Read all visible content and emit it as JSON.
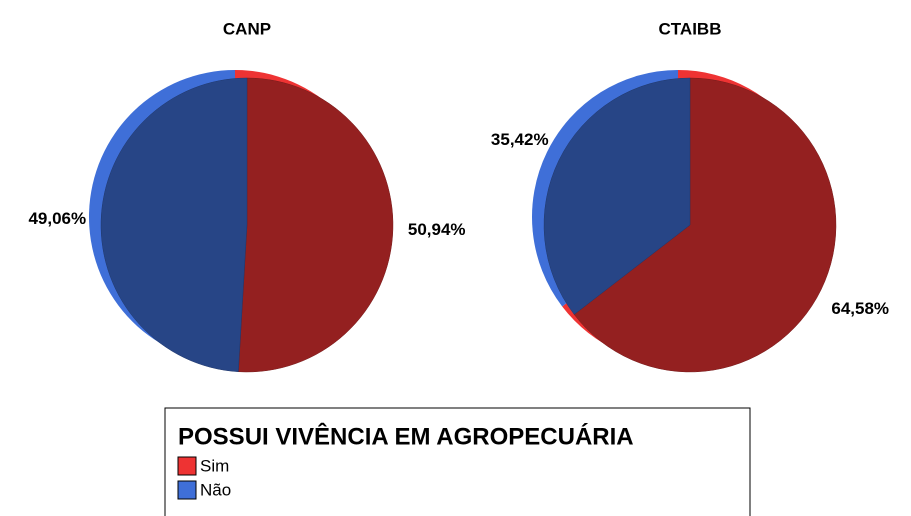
{
  "chart_data": [
    {
      "type": "pie",
      "title": "CANP",
      "categories": [
        "Sim",
        "Não"
      ],
      "values": [
        50.94,
        49.06
      ],
      "value_labels": [
        "50,94%",
        "49,06%"
      ],
      "colors": [
        "#ee3333",
        "#3f6fd8"
      ]
    },
    {
      "type": "pie",
      "title": "CTAIBB",
      "categories": [
        "Sim",
        "Não"
      ],
      "values": [
        64.58,
        35.42
      ],
      "value_labels": [
        "64,58%",
        "35,42%"
      ],
      "colors": [
        "#ee3333",
        "#3f6fd8"
      ]
    }
  ],
  "legend": {
    "title": "POSSUI VIVÊNCIA EM  AGROPECUÁRIA"
  }
}
